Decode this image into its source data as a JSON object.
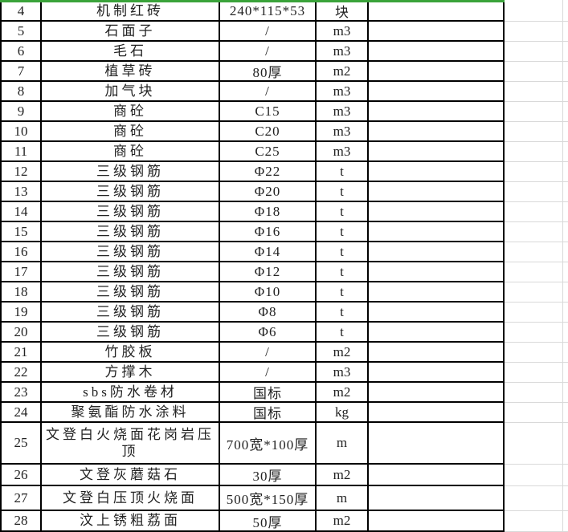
{
  "sheet": {
    "green_line_color": "#3aa33a",
    "border_color": "#000000",
    "gridline_color": "#d9d9d9",
    "text_color": "#222222",
    "background": "#ffffff"
  },
  "table": {
    "rows": [
      {
        "no": "4",
        "name": "机制红砖",
        "spec": "240*115*53",
        "unit": "块",
        "extra": ""
      },
      {
        "no": "5",
        "name": "石面子",
        "spec": "/",
        "unit": "m3",
        "extra": ""
      },
      {
        "no": "6",
        "name": "毛石",
        "spec": "/",
        "unit": "m3",
        "extra": ""
      },
      {
        "no": "7",
        "name": "植草砖",
        "spec": "80厚",
        "unit": "m2",
        "extra": ""
      },
      {
        "no": "8",
        "name": "加气块",
        "spec": "/",
        "unit": "m3",
        "extra": ""
      },
      {
        "no": "9",
        "name": "商砼",
        "spec": "C15",
        "unit": "m3",
        "extra": ""
      },
      {
        "no": "10",
        "name": "商砼",
        "spec": "C20",
        "unit": "m3",
        "extra": ""
      },
      {
        "no": "11",
        "name": "商砼",
        "spec": "C25",
        "unit": "m3",
        "extra": ""
      },
      {
        "no": "12",
        "name": "三级钢筋",
        "spec": "Φ22",
        "unit": "t",
        "extra": ""
      },
      {
        "no": "13",
        "name": "三级钢筋",
        "spec": "Φ20",
        "unit": "t",
        "extra": ""
      },
      {
        "no": "14",
        "name": "三级钢筋",
        "spec": "Φ18",
        "unit": "t",
        "extra": ""
      },
      {
        "no": "15",
        "name": "三级钢筋",
        "spec": "Φ16",
        "unit": "t",
        "extra": ""
      },
      {
        "no": "16",
        "name": "三级钢筋",
        "spec": "Φ14",
        "unit": "t",
        "extra": ""
      },
      {
        "no": "17",
        "name": "三级钢筋",
        "spec": "Φ12",
        "unit": "t",
        "extra": ""
      },
      {
        "no": "18",
        "name": "三级钢筋",
        "spec": "Φ10",
        "unit": "t",
        "extra": ""
      },
      {
        "no": "19",
        "name": "三级钢筋",
        "spec": "Φ8",
        "unit": "t",
        "extra": ""
      },
      {
        "no": "20",
        "name": "三级钢筋",
        "spec": "Φ6",
        "unit": "t",
        "extra": ""
      },
      {
        "no": "21",
        "name": "竹胶板",
        "spec": "/",
        "unit": "m2",
        "extra": ""
      },
      {
        "no": "22",
        "name": "方撑木",
        "spec": "/",
        "unit": "m3",
        "extra": ""
      },
      {
        "no": "23",
        "name": "sbs防水卷材",
        "spec": "国标",
        "unit": "m2",
        "extra": ""
      },
      {
        "no": "24",
        "name": "聚氨酯防水涂料",
        "spec": "国标",
        "unit": "kg",
        "extra": ""
      },
      {
        "no": "25",
        "name": "文登白火烧面花岗岩压顶",
        "spec": "700宽*100厚",
        "unit": "m",
        "extra": ""
      },
      {
        "no": "26",
        "name": "文登灰蘑菇石",
        "spec": "30厚",
        "unit": "m2",
        "extra": ""
      },
      {
        "no": "27",
        "name": "文登白压顶火烧面",
        "spec": "500宽*150厚",
        "unit": "m",
        "extra": ""
      },
      {
        "no": "28",
        "name": "汶上锈粗荔面",
        "spec": "50厚",
        "unit": "m2",
        "extra": ""
      }
    ]
  }
}
